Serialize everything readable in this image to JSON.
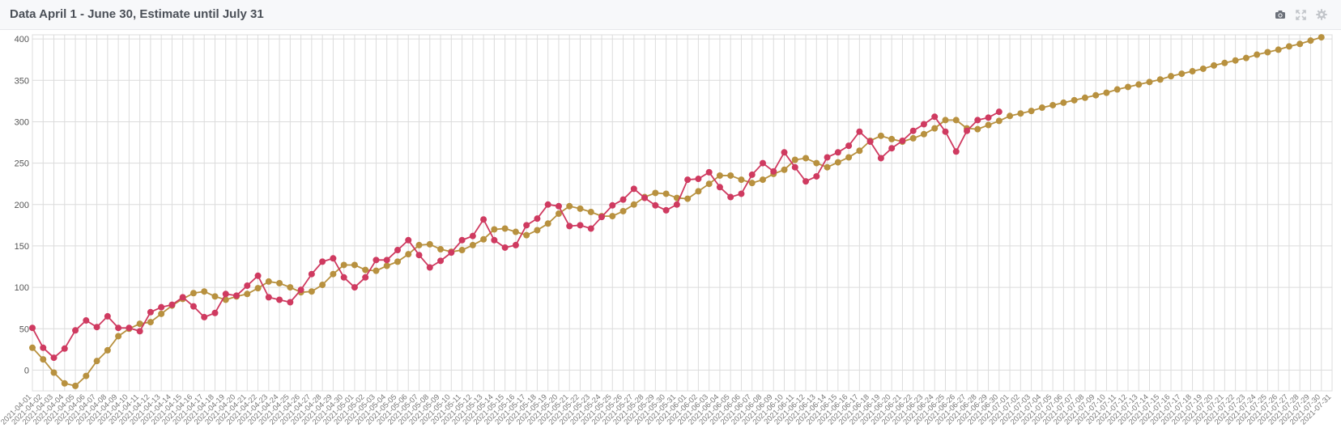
{
  "panel": {
    "title": "Data April 1 - June 30, Estimate until July 31",
    "tools": [
      {
        "name": "camera-icon"
      },
      {
        "name": "expand-icon"
      },
      {
        "name": "gear-icon"
      }
    ]
  },
  "colors": {
    "actual": "#cf3a60",
    "estimate": "#b8913f",
    "grid": "#dcdcdc",
    "header_bg": "#f7f8fa"
  },
  "chart_data": {
    "type": "line",
    "title": "Data April 1 - June 30, Estimate until July 31",
    "xlabel": "",
    "ylabel": "",
    "ylim": [
      -25,
      405
    ],
    "yticks": [
      0,
      50,
      100,
      150,
      200,
      250,
      300,
      350,
      400
    ],
    "grid": true,
    "x_start": "2021-04-01",
    "x_end": "2021-07-31",
    "series": [
      {
        "color": "#cf3a60",
        "values": [
          51,
          27,
          15,
          26,
          48,
          60,
          52,
          65,
          51,
          51,
          47,
          70,
          76,
          79,
          88,
          77,
          64,
          69,
          92,
          90,
          102,
          114,
          88,
          85,
          82,
          97,
          116,
          131,
          135,
          112,
          100,
          112,
          133,
          133,
          145,
          157,
          139,
          124,
          132,
          142,
          157,
          162,
          182,
          157,
          148,
          151,
          175,
          183,
          200,
          198,
          174,
          175,
          171,
          185,
          199,
          206,
          219,
          208,
          199,
          193,
          200,
          230,
          231,
          239,
          221,
          209,
          213,
          236,
          250,
          240,
          263,
          245,
          228,
          234,
          257,
          263,
          271,
          288,
          276,
          256,
          268,
          277,
          289,
          297,
          306,
          288,
          264,
          289,
          302,
          305,
          312
        ]
      },
      {
        "color": "#b8913f",
        "values": [
          27,
          13,
          -3,
          -16,
          -19,
          -7,
          11,
          24,
          41,
          50,
          56,
          58,
          68,
          78,
          86,
          93,
          95,
          89,
          85,
          89,
          92,
          99,
          107,
          105,
          100,
          94,
          95,
          103,
          116,
          127,
          127,
          121,
          120,
          126,
          131,
          140,
          151,
          152,
          146,
          143,
          145,
          151,
          158,
          170,
          171,
          167,
          163,
          169,
          177,
          189,
          198,
          195,
          191,
          186,
          186,
          192,
          200,
          209,
          214,
          213,
          208,
          207,
          216,
          225,
          235,
          235,
          230,
          226,
          230,
          237,
          242,
          254,
          256,
          250,
          245,
          251,
          257,
          265,
          277,
          283,
          279,
          276,
          280,
          285,
          292,
          302,
          302,
          292,
          291,
          296,
          301,
          307,
          310,
          313,
          317,
          320,
          323,
          326,
          329,
          332,
          335,
          339,
          342,
          345,
          348,
          351,
          355,
          358,
          361,
          364,
          368,
          371,
          374,
          377,
          381,
          384,
          387,
          391,
          394,
          398,
          402
        ]
      }
    ]
  }
}
